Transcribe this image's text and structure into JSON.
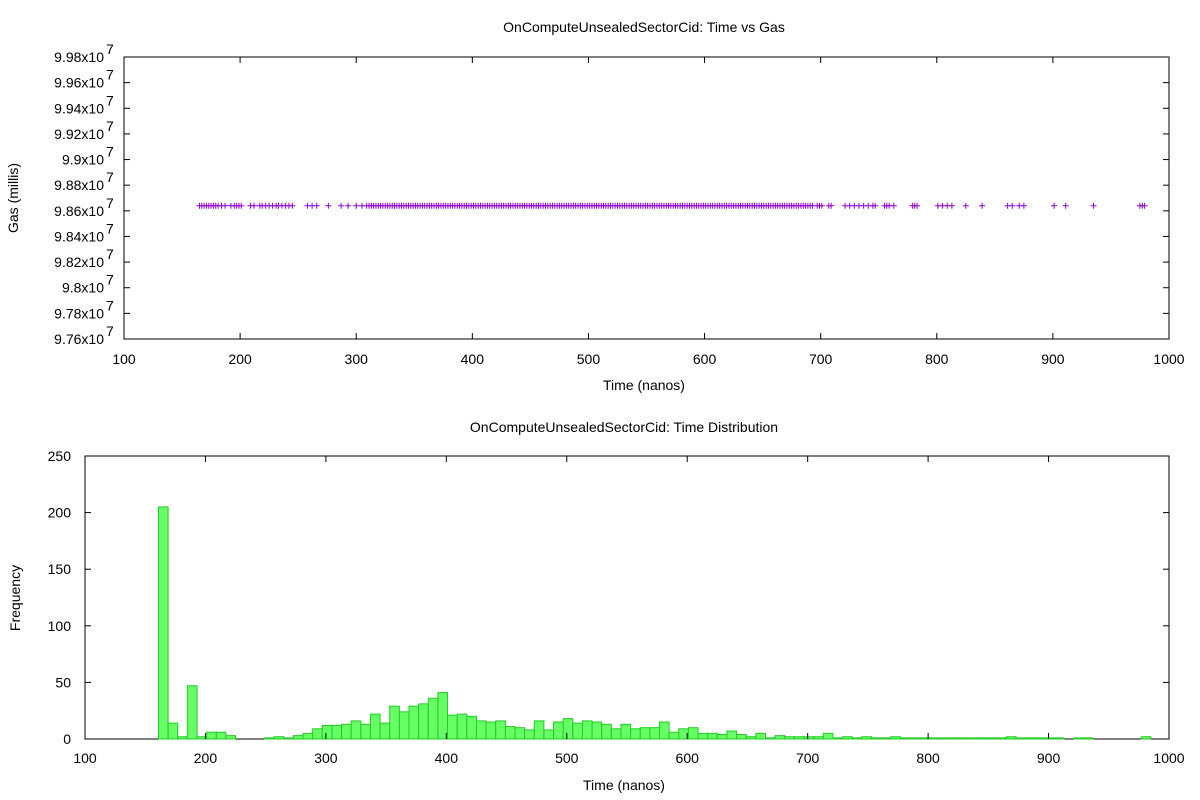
{
  "chart_data": [
    {
      "type": "scatter",
      "title": "OnComputeUnsealedSectorCid: Time vs Gas",
      "xlabel": "Time (nanos)",
      "ylabel": "Gas (millis)",
      "xlim": [
        100,
        1000
      ],
      "ylim": [
        97600000,
        99800000
      ],
      "xticks": [
        "100",
        "200",
        "300",
        "400",
        "500",
        "600",
        "700",
        "800",
        "900",
        "1000"
      ],
      "yticks": [
        {
          "mantissa": "9.76x10",
          "exp": "7"
        },
        {
          "mantissa": "9.78x10",
          "exp": "7"
        },
        {
          "mantissa": "9.8x10",
          "exp": "7"
        },
        {
          "mantissa": "9.82x10",
          "exp": "7"
        },
        {
          "mantissa": "9.84x10",
          "exp": "7"
        },
        {
          "mantissa": "9.86x10",
          "exp": "7"
        },
        {
          "mantissa": "9.88x10",
          "exp": "7"
        },
        {
          "mantissa": "9.9x10",
          "exp": "7"
        },
        {
          "mantissa": "9.92x10",
          "exp": "7"
        },
        {
          "mantissa": "9.94x10",
          "exp": "7"
        },
        {
          "mantissa": "9.96x10",
          "exp": "7"
        },
        {
          "mantissa": "9.98x10",
          "exp": "7"
        }
      ],
      "marker_color": "#9400d3",
      "y_value": 98640000,
      "x": [
        165,
        167,
        169,
        171,
        173,
        175,
        177,
        179,
        181,
        184,
        187,
        192,
        195,
        197,
        199,
        201,
        209,
        212,
        217,
        219,
        222,
        225,
        228,
        231,
        233,
        236,
        239,
        242,
        245,
        258,
        262,
        266,
        276,
        287,
        293,
        300,
        305,
        309,
        311,
        313,
        315,
        317,
        319,
        321,
        323,
        325,
        327,
        329,
        331,
        333,
        335,
        337,
        339,
        341,
        343,
        345,
        347,
        349,
        351,
        353,
        355,
        357,
        359,
        361,
        363,
        365,
        367,
        369,
        371,
        373,
        375,
        377,
        379,
        381,
        383,
        385,
        387,
        389,
        391,
        393,
        395,
        397,
        399,
        401,
        403,
        405,
        407,
        409,
        411,
        413,
        415,
        417,
        419,
        421,
        423,
        425,
        427,
        429,
        431,
        433,
        435,
        437,
        439,
        441,
        443,
        445,
        447,
        449,
        451,
        453,
        455,
        457,
        459,
        461,
        463,
        465,
        467,
        469,
        471,
        473,
        475,
        477,
        479,
        481,
        483,
        485,
        487,
        489,
        491,
        493,
        495,
        497,
        499,
        501,
        503,
        505,
        507,
        509,
        511,
        513,
        515,
        517,
        519,
        521,
        523,
        525,
        527,
        529,
        531,
        533,
        535,
        537,
        539,
        541,
        543,
        545,
        547,
        549,
        551,
        553,
        555,
        557,
        559,
        561,
        563,
        565,
        567,
        569,
        571,
        573,
        575,
        577,
        579,
        581,
        583,
        585,
        587,
        589,
        591,
        593,
        595,
        597,
        599,
        601,
        603,
        605,
        607,
        609,
        611,
        613,
        615,
        617,
        619,
        621,
        623,
        625,
        627,
        629,
        631,
        633,
        635,
        637,
        639,
        641,
        643,
        645,
        647,
        649,
        651,
        653,
        655,
        657,
        659,
        661,
        663,
        665,
        667,
        669,
        671,
        673,
        675,
        677,
        679,
        681,
        683,
        685,
        687,
        689,
        691,
        693,
        697,
        699,
        701,
        707,
        709,
        721,
        725,
        729,
        733,
        737,
        741,
        745,
        747,
        755,
        757,
        759,
        763,
        779,
        781,
        783,
        801,
        805,
        809,
        813,
        825,
        839,
        861,
        865,
        871,
        875,
        901,
        911,
        935,
        975,
        977,
        979
      ]
    },
    {
      "type": "bar",
      "title": "OnComputeUnsealedSectorCid: Time Distribution",
      "xlabel": "Time (nanos)",
      "ylabel": "Frequency",
      "xlim": [
        100,
        1000
      ],
      "ylim": [
        0,
        250
      ],
      "xticks": [
        "100",
        "200",
        "300",
        "400",
        "500",
        "600",
        "700",
        "800",
        "900",
        "1000"
      ],
      "yticks": [
        "0",
        "50",
        "100",
        "150",
        "200",
        "250"
      ],
      "bin_width": 8,
      "fill_color": "#66ff66",
      "stroke_color": "#22cc22",
      "bin_centers": [
        165,
        173,
        181,
        189,
        197,
        205,
        213,
        221,
        229,
        237,
        245,
        253,
        261,
        269,
        277,
        285,
        293,
        301,
        309,
        317,
        325,
        333,
        341,
        349,
        357,
        365,
        373,
        381,
        389,
        397,
        405,
        413,
        421,
        429,
        437,
        445,
        453,
        461,
        469,
        477,
        485,
        493,
        501,
        509,
        517,
        525,
        533,
        541,
        549,
        557,
        565,
        573,
        581,
        589,
        597,
        605,
        613,
        621,
        629,
        637,
        645,
        653,
        661,
        669,
        677,
        685,
        693,
        701,
        709,
        717,
        725,
        733,
        741,
        749,
        757,
        765,
        773,
        781,
        789,
        797,
        805,
        813,
        821,
        829,
        837,
        845,
        853,
        861,
        869,
        877,
        885,
        893,
        901,
        909,
        917,
        925,
        933,
        941,
        949,
        957,
        965,
        973,
        981
      ],
      "values": [
        205,
        14,
        2,
        47,
        2,
        6,
        6,
        3,
        0,
        0,
        0,
        1,
        2,
        1,
        3,
        5,
        9,
        12,
        12,
        13,
        16,
        13,
        22,
        14,
        29,
        24,
        29,
        31,
        36,
        41,
        21,
        22,
        20,
        16,
        15,
        16,
        11,
        10,
        8,
        16,
        8,
        15,
        18,
        14,
        16,
        15,
        13,
        9,
        13,
        9,
        10,
        10,
        15,
        6,
        9,
        10,
        5,
        5,
        4,
        7,
        4,
        2,
        5,
        1,
        3,
        2,
        2,
        2,
        2,
        5,
        1,
        2,
        1,
        2,
        1,
        1,
        2,
        1,
        1,
        1,
        1,
        1,
        1,
        1,
        1,
        1,
        1,
        1,
        2,
        1,
        1,
        1,
        1,
        1,
        0,
        1,
        1,
        0,
        0,
        0,
        0,
        0,
        2
      ]
    }
  ]
}
